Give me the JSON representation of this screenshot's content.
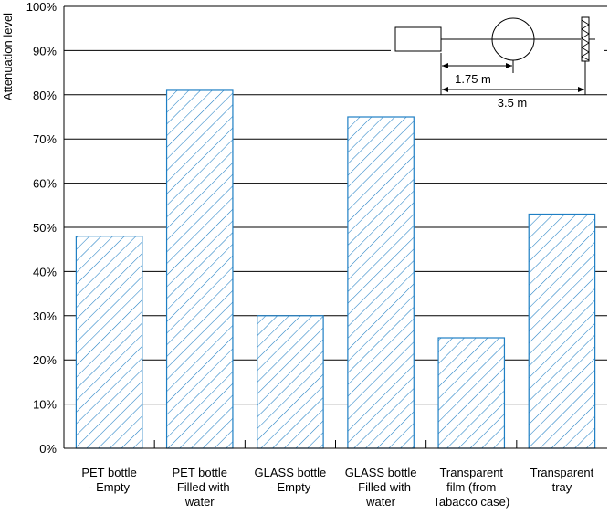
{
  "chart_data": {
    "type": "bar",
    "title": "",
    "xlabel": "",
    "ylabel": "Attenuation level",
    "ylim": [
      0,
      100
    ],
    "yticks": [
      "0%",
      "10%",
      "20%",
      "30%",
      "40%",
      "50%",
      "60%",
      "70%",
      "80%",
      "90%",
      "100%"
    ],
    "grid": true,
    "bar_fill": "hatched",
    "bar_color": "#1f7fc4",
    "categories": [
      [
        "PET bottle",
        "- Empty"
      ],
      [
        "PET bottle",
        "- Filled with",
        "water"
      ],
      [
        "GLASS bottle",
        "- Empty"
      ],
      [
        "GLASS bottle",
        "- Filled with",
        "water"
      ],
      [
        "Transparent",
        "film (from",
        "Tabacco case)"
      ],
      [
        "Transparent",
        "tray"
      ]
    ],
    "values": [
      48,
      81,
      30,
      75,
      25,
      53
    ],
    "inset_diagram": {
      "distance_1": "1.75 m",
      "distance_2": "3.5 m"
    }
  }
}
